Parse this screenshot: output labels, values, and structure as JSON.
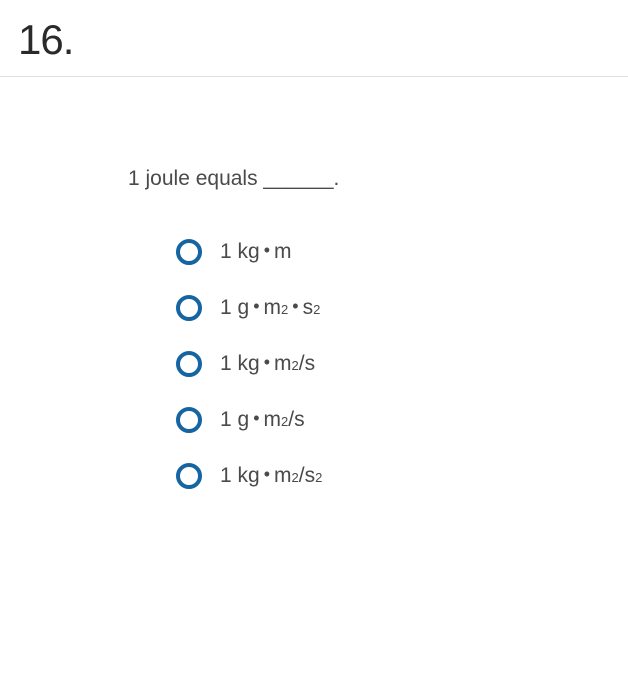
{
  "question": {
    "number": "16.",
    "text": "1 joule equals ______.",
    "options": [
      {
        "parts": [
          {
            "type": "text",
            "value": "1 kg"
          },
          {
            "type": "dot"
          },
          {
            "type": "text",
            "value": "m"
          }
        ]
      },
      {
        "parts": [
          {
            "type": "text",
            "value": "1 g"
          },
          {
            "type": "dot"
          },
          {
            "type": "text",
            "value": "m"
          },
          {
            "type": "sup",
            "value": "2"
          },
          {
            "type": "dot"
          },
          {
            "type": "text",
            "value": "s"
          },
          {
            "type": "sup",
            "value": "2"
          }
        ]
      },
      {
        "parts": [
          {
            "type": "text",
            "value": "1 kg"
          },
          {
            "type": "dot"
          },
          {
            "type": "text",
            "value": "m"
          },
          {
            "type": "sup",
            "value": "2"
          },
          {
            "type": "text",
            "value": "/s"
          }
        ]
      },
      {
        "parts": [
          {
            "type": "text",
            "value": "1 g"
          },
          {
            "type": "dot"
          },
          {
            "type": "text",
            "value": "m"
          },
          {
            "type": "sup",
            "value": "2"
          },
          {
            "type": "text",
            "value": "/s"
          }
        ]
      },
      {
        "parts": [
          {
            "type": "text",
            "value": "1 kg"
          },
          {
            "type": "dot"
          },
          {
            "type": "text",
            "value": "m"
          },
          {
            "type": "sup",
            "value": "2"
          },
          {
            "type": "text",
            "value": "/s"
          },
          {
            "type": "sup",
            "value": "2"
          }
        ]
      }
    ]
  },
  "styling": {
    "radio_border_color": "#1565a2",
    "radio_border_width": 4,
    "radio_size": 26,
    "text_color": "#4a4a4a",
    "number_color": "#2a2a2a",
    "divider_color": "#e0e0e0",
    "background_color": "#ffffff",
    "question_fontsize": 21,
    "number_fontsize": 42
  }
}
